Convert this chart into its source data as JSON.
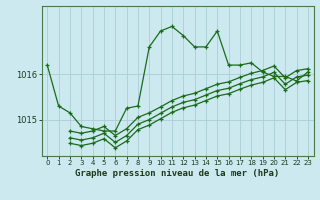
{
  "background_color": "#cce9f0",
  "plot_bg_color": "#cce9f0",
  "line_color": "#1a6b1a",
  "grid_color": "#aacdd6",
  "title": "Graphe pression niveau de la mer (hPa)",
  "xlim": [
    -0.5,
    23.5
  ],
  "ylim": [
    1014.2,
    1017.5
  ],
  "yticks": [
    1015,
    1016
  ],
  "xticks": [
    0,
    1,
    2,
    3,
    4,
    5,
    6,
    7,
    8,
    9,
    10,
    11,
    12,
    13,
    14,
    15,
    16,
    17,
    18,
    19,
    20,
    21,
    22,
    23
  ],
  "series1_x": [
    0,
    1,
    2,
    3,
    4,
    5,
    6,
    7,
    8,
    9,
    10,
    11,
    12,
    13,
    14,
    15,
    16,
    17,
    18,
    19,
    20,
    21,
    22,
    23
  ],
  "series1_y": [
    1016.2,
    1015.3,
    1015.15,
    1014.85,
    1014.8,
    1014.75,
    1014.75,
    1015.25,
    1015.3,
    1016.6,
    1016.95,
    1017.05,
    1016.85,
    1016.6,
    1016.6,
    1016.95,
    1016.2,
    1016.2,
    1016.25,
    1016.05,
    1015.95,
    1015.95,
    1015.85,
    1016.05
  ],
  "series2_x": [
    2,
    3,
    4,
    5,
    6,
    7,
    8,
    9,
    10,
    11,
    12,
    13,
    14,
    15,
    16,
    17,
    18,
    19,
    20,
    21,
    22,
    23
  ],
  "series2_y": [
    1014.75,
    1014.7,
    1014.75,
    1014.85,
    1014.65,
    1014.8,
    1015.05,
    1015.15,
    1015.28,
    1015.42,
    1015.52,
    1015.58,
    1015.68,
    1015.78,
    1015.83,
    1015.93,
    1016.02,
    1016.08,
    1016.18,
    1015.92,
    1016.08,
    1016.12
  ],
  "series3_x": [
    2,
    3,
    4,
    5,
    6,
    7,
    8,
    9,
    10,
    11,
    12,
    13,
    14,
    15,
    16,
    17,
    18,
    19,
    20,
    21,
    22,
    23
  ],
  "series3_y": [
    1014.6,
    1014.55,
    1014.6,
    1014.7,
    1014.5,
    1014.65,
    1014.9,
    1015.0,
    1015.14,
    1015.28,
    1015.38,
    1015.44,
    1015.54,
    1015.64,
    1015.69,
    1015.79,
    1015.88,
    1015.94,
    1016.04,
    1015.78,
    1015.94,
    1015.98
  ],
  "series4_x": [
    2,
    3,
    4,
    5,
    6,
    7,
    8,
    9,
    10,
    11,
    12,
    13,
    14,
    15,
    16,
    17,
    18,
    19,
    20,
    21,
    22,
    23
  ],
  "series4_y": [
    1014.48,
    1014.43,
    1014.48,
    1014.58,
    1014.38,
    1014.53,
    1014.78,
    1014.88,
    1015.02,
    1015.16,
    1015.26,
    1015.32,
    1015.42,
    1015.52,
    1015.57,
    1015.67,
    1015.76,
    1015.82,
    1015.92,
    1015.66,
    1015.82,
    1015.86
  ]
}
